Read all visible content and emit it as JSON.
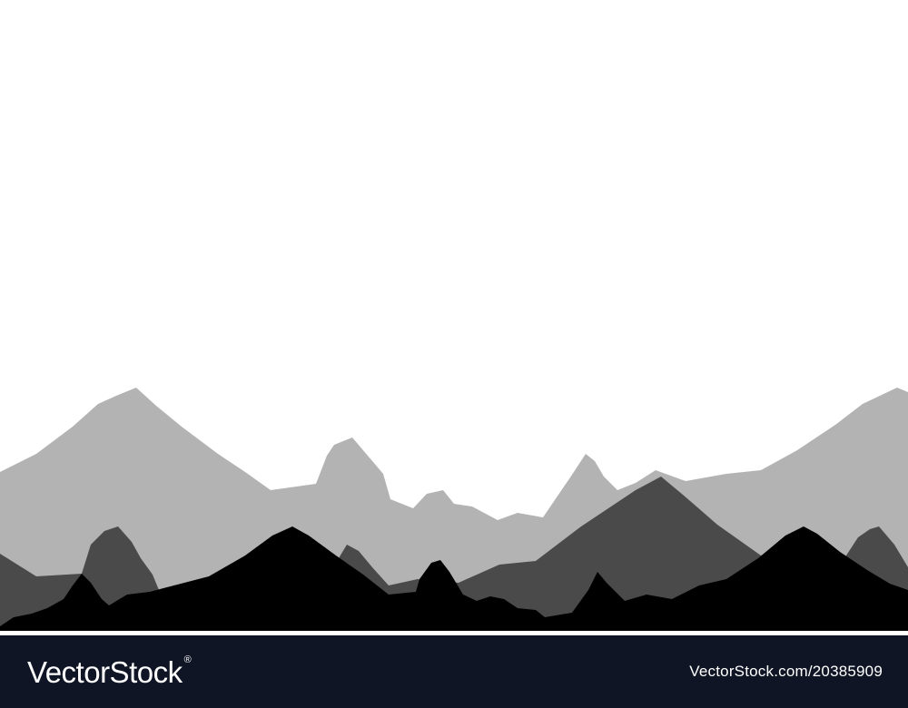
{
  "colors": {
    "sky": "#ffffff",
    "far_mountains": "#b3b3b3",
    "mid_mountains": "#4a4a4a",
    "near_mountains": "#000000",
    "footer_bg": "#0f1524",
    "footer_text": "#ffffff"
  },
  "footer": {
    "logo": "VectorStock",
    "registered": "®",
    "credit": "VectorStock.com/20385909"
  }
}
